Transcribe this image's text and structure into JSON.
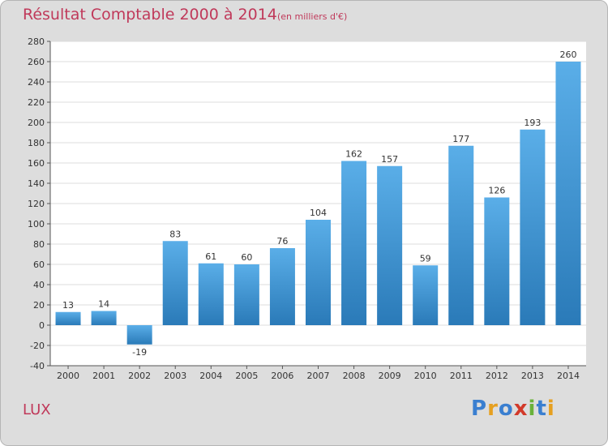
{
  "header": {
    "title": "Résultat Comptable 2000 à 2014",
    "subtitle": "(en milliers d'€)"
  },
  "footer": {
    "place": "LUX",
    "logo_letters": [
      "P",
      "r",
      "o",
      "x",
      "i",
      "t",
      "i"
    ]
  },
  "colors": {
    "title": "#c0395a",
    "bar_top": "#5aaee8",
    "bar_bottom": "#2a7ab8",
    "background": "#dddddd",
    "plot_background": "#ffffff",
    "logo": [
      "#3a7fd0",
      "#e6a020",
      "#3a7fd0",
      "#d23a2a",
      "#6ab23a",
      "#3a7fd0",
      "#e6a020"
    ]
  },
  "chart_data": {
    "type": "bar",
    "categories": [
      "2000",
      "2001",
      "2002",
      "2003",
      "2004",
      "2005",
      "2006",
      "2007",
      "2008",
      "2009",
      "2010",
      "2011",
      "2012",
      "2013",
      "2014"
    ],
    "values": [
      13,
      14,
      -19,
      83,
      61,
      60,
      76,
      104,
      162,
      157,
      59,
      177,
      126,
      193,
      260
    ],
    "data_labels": [
      "13",
      "14",
      "-19",
      "83",
      "61",
      "60",
      "76",
      "104",
      "162",
      "157",
      "59",
      "177",
      "126",
      "193",
      "260"
    ],
    "title": "Résultat Comptable 2000 à 2014",
    "xlabel": "",
    "ylabel": "",
    "ylim": [
      -40,
      280
    ],
    "yticks": [
      -40,
      -20,
      0,
      20,
      40,
      60,
      80,
      100,
      120,
      140,
      160,
      180,
      200,
      220,
      240,
      260,
      280
    ],
    "grid": true,
    "legend": "none"
  }
}
